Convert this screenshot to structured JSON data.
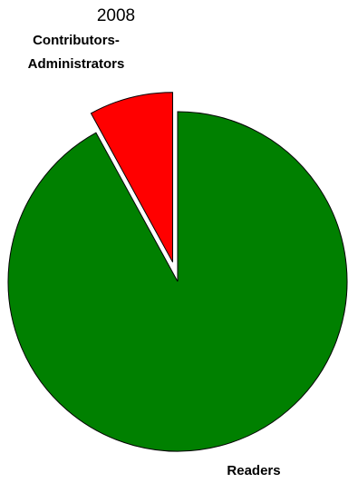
{
  "chart_data": {
    "type": "pie",
    "title": "2008",
    "slices": [
      {
        "label": "Contributors-\nAdministrators",
        "value": 8,
        "color": "#ff0000",
        "exploded": true
      },
      {
        "label": "Readers",
        "value": 92,
        "color": "#008000",
        "exploded": false
      }
    ]
  }
}
